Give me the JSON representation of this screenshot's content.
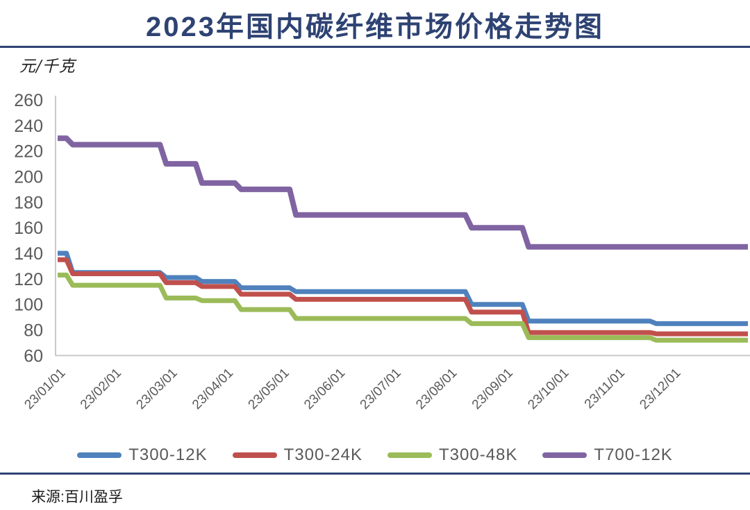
{
  "page": {
    "title": "2023年国内碳纤维市场价格走势图",
    "unit_label": "元/千克",
    "source": "来源:百川盈孚"
  },
  "colors": {
    "title_navy": "#2e4373",
    "axis_line": "#c9c9c9",
    "tick_text": "#595959"
  },
  "legend": {
    "items": [
      {
        "label": "T300-12K",
        "color": "#4f81bd"
      },
      {
        "label": "T300-24K",
        "color": "#c0504d"
      },
      {
        "label": "T300-48K",
        "color": "#9bbb59"
      },
      {
        "label": "T700-12K",
        "color": "#8064a2"
      }
    ]
  },
  "chart_data": {
    "type": "line",
    "title": "2023年国内碳纤维市场价格走势图",
    "ylabel": "元/千克",
    "ylim": [
      60,
      260
    ],
    "ytick_step": 20,
    "grid": false,
    "legend_position": "bottom",
    "x_unit": "months since 2023-01-01",
    "xlim": [
      0,
      12.34
    ],
    "x_tick_labels": [
      "23/01/01",
      "23/02/01",
      "23/03/01",
      "23/04/01",
      "23/05/01",
      "23/06/01",
      "23/07/01",
      "23/08/01",
      "23/09/01",
      "23/10/01",
      "23/11/01",
      "23/12/01"
    ],
    "series": [
      {
        "name": "T300-12K",
        "color": "#4f81bd",
        "steps": [
          [
            0,
            140
          ],
          [
            0.27,
            125
          ],
          [
            1.94,
            121
          ],
          [
            2.58,
            118
          ],
          [
            3.28,
            113
          ],
          [
            4.26,
            110
          ],
          [
            7.4,
            100
          ],
          [
            8.42,
            87
          ],
          [
            10.7,
            85
          ],
          [
            12.34,
            85
          ]
        ]
      },
      {
        "name": "T300-24K",
        "color": "#c0504d",
        "steps": [
          [
            0,
            135
          ],
          [
            0.27,
            124
          ],
          [
            1.94,
            117
          ],
          [
            2.58,
            114
          ],
          [
            3.28,
            108
          ],
          [
            4.26,
            104
          ],
          [
            7.4,
            94
          ],
          [
            8.42,
            78
          ],
          [
            10.7,
            77
          ],
          [
            12.34,
            77
          ]
        ]
      },
      {
        "name": "T300-48K",
        "color": "#9bbb59",
        "steps": [
          [
            0,
            123
          ],
          [
            0.27,
            115
          ],
          [
            1.94,
            105
          ],
          [
            2.58,
            103
          ],
          [
            3.28,
            96
          ],
          [
            4.26,
            89
          ],
          [
            7.4,
            85
          ],
          [
            8.42,
            74
          ],
          [
            10.7,
            72
          ],
          [
            12.34,
            72
          ]
        ]
      },
      {
        "name": "T700-12K",
        "color": "#8064a2",
        "steps": [
          [
            0,
            230
          ],
          [
            0.27,
            225
          ],
          [
            1.94,
            210
          ],
          [
            2.58,
            195
          ],
          [
            3.28,
            190
          ],
          [
            4.26,
            170
          ],
          [
            7.4,
            160
          ],
          [
            8.42,
            145
          ],
          [
            12.34,
            145
          ]
        ]
      }
    ]
  }
}
